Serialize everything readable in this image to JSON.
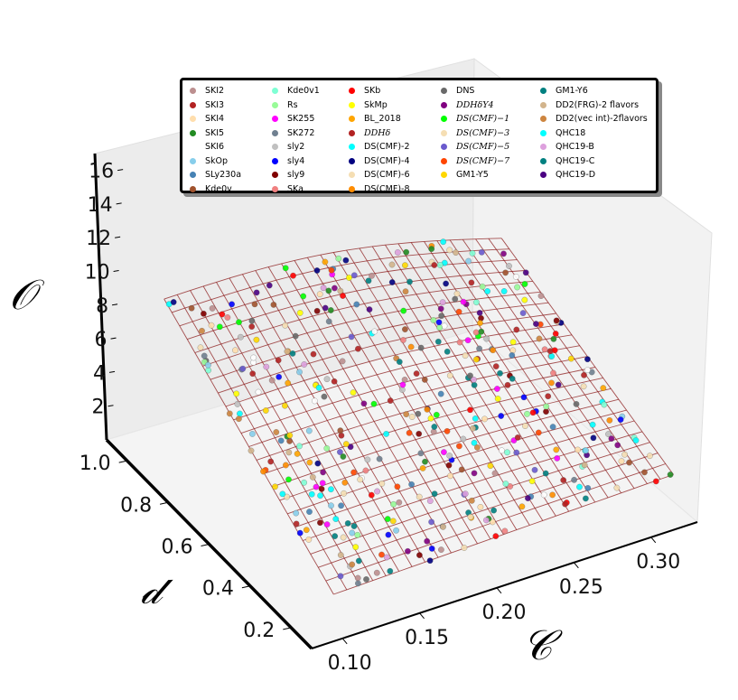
{
  "chart_data": {
    "type": "scatter",
    "subtype": "3d-scatter-with-wireframe-surface",
    "axes": {
      "x": {
        "label": "𝒞",
        "ticks": [
          "0.10",
          "0.15",
          "0.20",
          "0.25",
          "0.30"
        ],
        "range": [
          0.08,
          0.33
        ]
      },
      "y": {
        "label": "𝒹",
        "ticks": [
          "0.2",
          "0.4",
          "0.6",
          "0.8",
          "1.0"
        ],
        "range": [
          0.1,
          1.1
        ]
      },
      "z": {
        "label": "𝒪",
        "ticks": [
          "2",
          "4",
          "6",
          "8",
          "10",
          "12",
          "14",
          "16"
        ],
        "range": [
          0,
          17
        ]
      }
    },
    "surface": {
      "color": "#8b1a1a",
      "x": [
        0.1,
        0.32
      ],
      "y": [
        0.15,
        1.0
      ],
      "note_z_at_corners": {
        "low_C_high_d": 9.0,
        "low_C_low_d": 2.0,
        "high_C_high_d": 6.0,
        "high_C_low_d": 2.5
      }
    },
    "legend": {
      "placement": "top",
      "columns": [
        [
          {
            "label": "SKI2",
            "color": "#bc8f8f",
            "math": false
          },
          {
            "label": "SKI3",
            "color": "#b22222",
            "math": false
          },
          {
            "label": "SKI4",
            "color": "#ffdead",
            "math": false
          },
          {
            "label": "SKI5",
            "color": "#228b22",
            "math": false
          },
          {
            "label": "SKI6",
            "color": "#ffffff",
            "math": false
          },
          {
            "label": "SkOp",
            "color": "#87ceeb",
            "math": false
          },
          {
            "label": "SLy230a",
            "color": "#4682b4",
            "math": false
          },
          {
            "label": "Kde0v",
            "color": "#a0522d",
            "math": false
          }
        ],
        [
          {
            "label": "Kde0v1",
            "color": "#7fffd4",
            "math": false
          },
          {
            "label": "Rs",
            "color": "#98fb98",
            "math": false
          },
          {
            "label": "SK255",
            "color": "#ff00ff",
            "math": false
          },
          {
            "label": "SK272",
            "color": "#708090",
            "math": false
          },
          {
            "label": "sly2",
            "color": "#c0c0c0",
            "math": false
          },
          {
            "label": "sly4",
            "color": "#0000ff",
            "math": false
          },
          {
            "label": "sly9",
            "color": "#800000",
            "math": false
          },
          {
            "label": "SKa",
            "color": "#f08080",
            "math": false
          }
        ],
        [
          {
            "label": "SKb",
            "color": "#ff0000",
            "math": false
          },
          {
            "label": "SkMp",
            "color": "#ffff00",
            "math": false
          },
          {
            "label": "BL_2018",
            "color": "#ffa500",
            "math": false
          },
          {
            "label": "DDHδ",
            "color": "#b22222",
            "math": true
          },
          {
            "label": "DS(CMF)-2",
            "color": "#00ffff",
            "math": false
          },
          {
            "label": "DS(CMF)-4",
            "color": "#000080",
            "math": false
          },
          {
            "label": "DS(CMF)-6",
            "color": "#f5deb3",
            "math": false
          },
          {
            "label": "DS(CMF)-8",
            "color": "#ff8c00",
            "math": false
          }
        ],
        [
          {
            "label": "DNS",
            "color": "#696969",
            "math": false
          },
          {
            "label": "DDHδY4",
            "color": "#800080",
            "math": true
          },
          {
            "label": "DS(CMF)−1",
            "color": "#00ff00",
            "math": true
          },
          {
            "label": "DS(CMF)−3",
            "color": "#f5deb3",
            "math": true
          },
          {
            "label": "DS(CMF)−5",
            "color": "#6a5acd",
            "math": true
          },
          {
            "label": "DS(CMF)−7",
            "color": "#ff4500",
            "math": true
          },
          {
            "label": "GM1-Y5",
            "color": "#ffd700",
            "math": false
          }
        ],
        [
          {
            "label": "GM1-Y6",
            "color": "#008080",
            "math": false
          },
          {
            "label": "DD2(FRG)-2 flavors",
            "color": "#d2b48c",
            "math": false
          },
          {
            "label": "DD2(vec int)-2flavors",
            "color": "#cd853f",
            "math": false
          },
          {
            "label": "QHC18",
            "color": "#00ffff",
            "math": false
          },
          {
            "label": "QHC19-B",
            "color": "#dda0dd",
            "math": false
          },
          {
            "label": "QHC19-C",
            "color": "#008080",
            "math": false
          },
          {
            "label": "QHC19-D",
            "color": "#4b0082",
            "math": false
          }
        ]
      ]
    }
  }
}
